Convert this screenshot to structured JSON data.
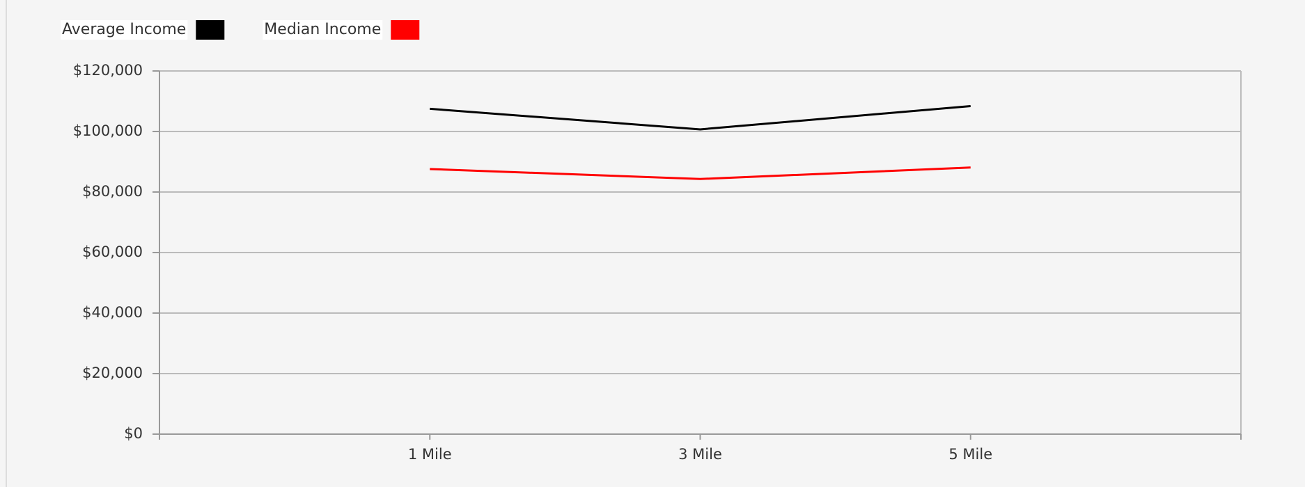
{
  "chart_data": {
    "type": "line",
    "categories": [
      null,
      "1 Mile",
      "3 Mile",
      "5 Mile",
      null
    ],
    "series": [
      {
        "name": "Average Income",
        "color": "#000000",
        "values": [
          null,
          107500,
          100700,
          108400,
          null
        ]
      },
      {
        "name": "Median Income",
        "color": "#ff0000",
        "values": [
          null,
          87600,
          84300,
          88100,
          null
        ]
      }
    ],
    "ylim": [
      0,
      120000
    ],
    "yticks": [
      {
        "value": 0,
        "label": "$0"
      },
      {
        "value": 20000,
        "label": "$20,000"
      },
      {
        "value": 40000,
        "label": "$40,000"
      },
      {
        "value": 60000,
        "label": "$60,000"
      },
      {
        "value": 80000,
        "label": "$80,000"
      },
      {
        "value": 100000,
        "label": "$100,000"
      },
      {
        "value": 120000,
        "label": "$120,000"
      }
    ],
    "grid": true,
    "legend": "top-left"
  }
}
